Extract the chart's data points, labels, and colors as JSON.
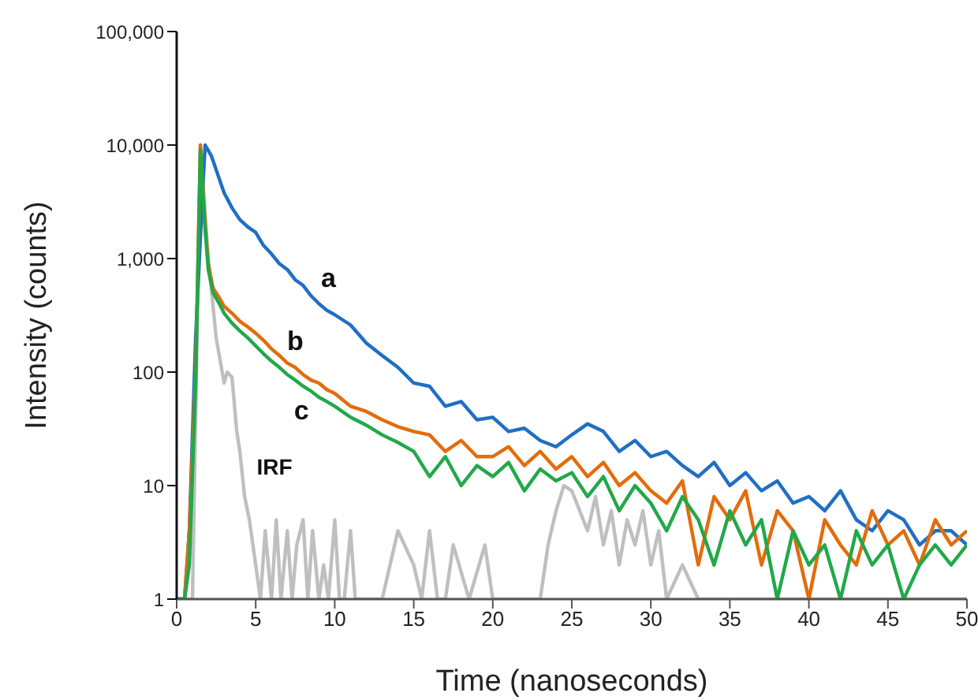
{
  "chart_data": {
    "type": "line",
    "xlabel": "Time (nanoseconds)",
    "ylabel": "Intensity (counts)",
    "log": "y",
    "grid": false,
    "legend": false,
    "marker": "none",
    "line_style": "solid",
    "xlim": [
      0,
      50
    ],
    "xticks": [
      0,
      5,
      10,
      15,
      20,
      25,
      30,
      35,
      40,
      45,
      50
    ],
    "ylim": [
      1,
      100000
    ],
    "yticks": [
      1,
      10,
      100,
      {
        "value": 1000,
        "label": "1,000"
      },
      {
        "value": 10000,
        "label": "10,000"
      },
      {
        "value": 100000,
        "label": "100,000"
      }
    ],
    "annotations": [
      {
        "text": "a",
        "x": 9,
        "y": 400
      },
      {
        "text": "b",
        "x": 7.5,
        "y": 110
      },
      {
        "text": "c",
        "x": 7.5,
        "y": 85
      },
      {
        "text": "IRF",
        "x": 4,
        "y": 20
      }
    ],
    "series": [
      {
        "color": "#bfbfbf",
        "x": [
          0,
          1,
          1.5,
          2,
          2.5,
          3,
          3.2,
          3.5,
          3.8,
          4,
          4.3,
          4.6,
          5,
          5.3,
          5.6,
          6,
          6.3,
          6.6,
          7,
          7.3,
          7.6,
          8,
          8.3,
          8.6,
          9,
          9.3,
          9.6,
          10,
          10.3,
          10.6,
          11,
          11.3,
          13,
          14,
          15,
          15.5,
          16,
          16.5,
          17,
          17.5,
          18.5,
          19.5,
          20,
          20.4,
          21,
          23,
          23.5,
          24,
          24.5,
          25,
          25.5,
          26,
          26.5,
          27,
          27.5,
          28,
          28.5,
          29,
          29.5,
          30,
          30.5,
          31,
          32,
          33,
          50
        ],
        "values": [
          1,
          1,
          10000,
          1000,
          200,
          80,
          100,
          90,
          30,
          20,
          8,
          5,
          2,
          1,
          4,
          1,
          5,
          1,
          4,
          1,
          3,
          5,
          1,
          4,
          1,
          2,
          1,
          5,
          1,
          1,
          4,
          1,
          1,
          4,
          2,
          1,
          4,
          1,
          1,
          3,
          1,
          3,
          1,
          1,
          1,
          1,
          3,
          6,
          10,
          9,
          6,
          4,
          8,
          3,
          6,
          2,
          5,
          3,
          6,
          2,
          4,
          1,
          2,
          1,
          1
        ]
      },
      {
        "color": "#1f6fc4",
        "x": [
          0,
          0.5,
          0.8,
          1.2,
          1.6,
          1.8,
          2.2,
          2.6,
          3,
          3.5,
          4,
          4.5,
          5,
          5.5,
          6,
          6.5,
          7,
          7.5,
          8,
          8.5,
          9,
          9.5,
          10,
          11,
          12,
          13,
          14,
          15,
          16,
          17,
          18,
          19,
          20,
          21,
          22,
          23,
          24,
          25,
          26,
          27,
          28,
          29,
          30,
          31,
          32,
          33,
          34,
          35,
          36,
          37,
          38,
          39,
          40,
          41,
          42,
          43,
          44,
          45,
          46,
          47,
          48,
          49,
          50
        ],
        "values": [
          1,
          1,
          4,
          200,
          3000,
          10000,
          8000,
          5500,
          3800,
          2800,
          2200,
          1900,
          1700,
          1300,
          1100,
          900,
          800,
          650,
          580,
          470,
          400,
          350,
          320,
          260,
          180,
          140,
          110,
          80,
          75,
          50,
          55,
          38,
          40,
          30,
          32,
          25,
          22,
          28,
          35,
          30,
          20,
          25,
          18,
          20,
          15,
          12,
          16,
          10,
          13,
          9,
          11,
          7,
          8,
          6,
          9,
          5,
          4,
          6,
          5,
          3,
          4,
          4,
          3
        ]
      },
      {
        "color": "#e36c0a",
        "x": [
          0,
          0.5,
          0.8,
          1.2,
          1.5,
          1.8,
          2,
          2.3,
          2.7,
          3,
          3.5,
          4,
          4.5,
          5,
          5.5,
          6,
          6.5,
          7,
          7.5,
          8,
          8.5,
          9,
          9.5,
          10,
          11,
          12,
          13,
          14,
          15,
          16,
          17,
          18,
          19,
          20,
          21,
          22,
          23,
          24,
          25,
          26,
          27,
          28,
          29,
          30,
          31,
          32,
          33,
          34,
          35,
          36,
          37,
          38,
          39,
          40,
          41,
          42,
          43,
          44,
          45,
          46,
          47,
          48,
          49,
          50
        ],
        "values": [
          1,
          1,
          4,
          100,
          10000,
          2000,
          900,
          550,
          450,
          380,
          330,
          280,
          250,
          220,
          190,
          160,
          140,
          120,
          110,
          95,
          85,
          80,
          70,
          65,
          50,
          45,
          38,
          33,
          30,
          28,
          20,
          25,
          18,
          18,
          22,
          15,
          20,
          14,
          18,
          12,
          16,
          10,
          13,
          9,
          7,
          11,
          2,
          8,
          5,
          9,
          2,
          6,
          4,
          1,
          5,
          3,
          2,
          6,
          3,
          4,
          2,
          5,
          3,
          4
        ]
      },
      {
        "color": "#21a84a",
        "x": [
          0,
          0.5,
          0.8,
          1.2,
          1.5,
          1.8,
          2,
          2.3,
          2.7,
          3,
          3.5,
          4,
          4.5,
          5,
          5.5,
          6,
          6.5,
          7,
          7.5,
          8,
          8.5,
          9,
          9.5,
          10,
          11,
          12,
          13,
          14,
          15,
          16,
          17,
          18,
          19,
          20,
          21,
          22,
          23,
          24,
          25,
          26,
          27,
          28,
          29,
          30,
          31,
          32,
          33,
          34,
          35,
          36,
          37,
          38,
          39,
          40,
          41,
          42,
          43,
          44,
          45,
          46,
          47,
          48,
          49,
          50
        ],
        "values": [
          1,
          1,
          2,
          80,
          9000,
          1800,
          800,
          500,
          400,
          330,
          270,
          230,
          200,
          170,
          145,
          125,
          110,
          95,
          85,
          75,
          68,
          60,
          55,
          50,
          40,
          34,
          28,
          24,
          20,
          12,
          18,
          10,
          15,
          12,
          16,
          9,
          14,
          11,
          13,
          8,
          12,
          6,
          10,
          7,
          4,
          8,
          5,
          2,
          6,
          3,
          5,
          1,
          4,
          2,
          3,
          1,
          4,
          2,
          3,
          1,
          2,
          3,
          2,
          3
        ]
      }
    ]
  }
}
